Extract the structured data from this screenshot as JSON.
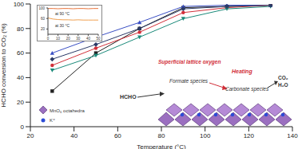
{
  "chart_data": [
    {
      "type": "line",
      "x_label": "Temperature (°C)",
      "y_label": "HCHO conversion to CO₂ (%)",
      "x": [
        30,
        50,
        70,
        90,
        110,
        130
      ],
      "series": [
        {
          "color": "#222222",
          "marker": "square",
          "values": [
            29,
            60,
            80,
            97,
            98,
            99
          ]
        },
        {
          "color": "#3a4fc4",
          "marker": "triangle",
          "values": [
            60,
            73,
            85,
            98,
            99,
            99
          ]
        },
        {
          "color": "#d2303a",
          "marker": "circle",
          "values": [
            50,
            64,
            77,
            93,
            97,
            99
          ]
        },
        {
          "color": "#1a8a7a",
          "marker": "triangle-down",
          "values": [
            46,
            58,
            73,
            88,
            96,
            98
          ]
        },
        {
          "color": "#2b3a67",
          "marker": "diamond",
          "values": [
            55,
            67,
            80,
            96,
            98,
            99
          ]
        }
      ],
      "xlim": [
        20,
        140
      ],
      "xticks": [
        20,
        40,
        60,
        80,
        100,
        120,
        140
      ],
      "ylim": [
        0,
        100
      ],
      "yticks": [
        0,
        20,
        40,
        60,
        80,
        100
      ],
      "annotations": [
        "HCHO",
        "Superficial lattice oxygen",
        "Formate species",
        "Heating",
        "Carbonate species",
        "CO₂",
        "H₂O",
        "MnO₆ octahedra",
        "K⁺"
      ]
    },
    {
      "type": "line",
      "x": [
        0,
        5,
        10,
        15,
        20,
        25,
        30,
        35,
        40,
        45,
        50
      ],
      "series": [
        {
          "name": "at 90 °C",
          "color": "#e8743b",
          "values": [
            98,
            98,
            97,
            98,
            98,
            97,
            98,
            98,
            97,
            98,
            98
          ]
        },
        {
          "name": "at 30 °C",
          "color": "#f0a050",
          "values": [
            62,
            58,
            56,
            55,
            55,
            54,
            55,
            54,
            54,
            54,
            54
          ]
        }
      ],
      "xlim": [
        0,
        50
      ],
      "xticks": [
        0,
        10,
        20,
        30,
        40,
        50
      ],
      "ylim": [
        0,
        100
      ],
      "yticks": [
        0,
        20,
        40,
        60,
        80,
        100
      ]
    }
  ]
}
